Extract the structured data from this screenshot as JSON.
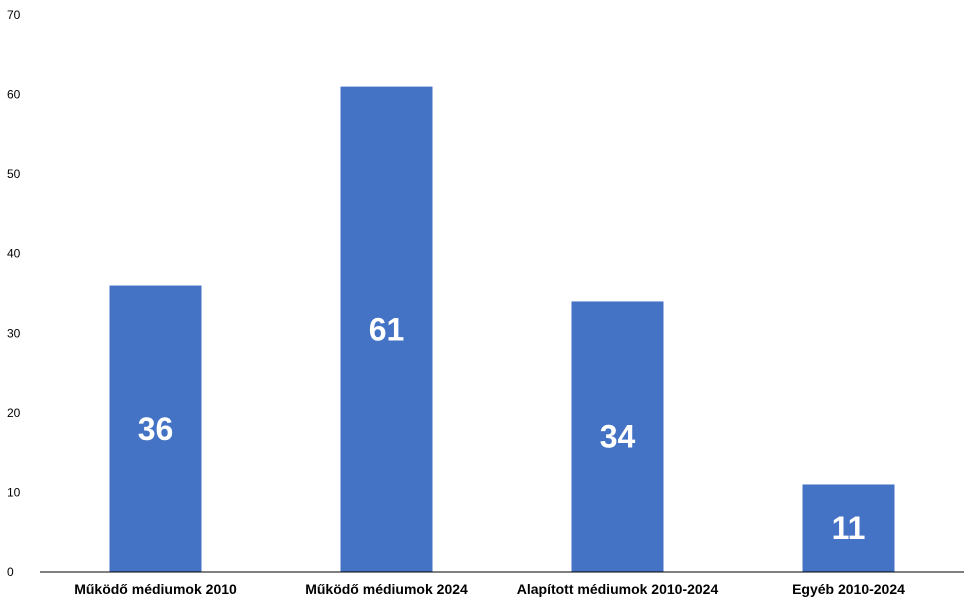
{
  "chart_data": {
    "type": "bar",
    "categories": [
      "Működő médiumok 2010",
      "Működő médiumok 2024",
      "Alapított médiumok 2010-2024",
      "Egyéb 2010-2024"
    ],
    "values": [
      36,
      61,
      34,
      11
    ],
    "data_labels": [
      "36",
      "61",
      "34",
      "11"
    ],
    "yticks": [
      "0",
      "10",
      "20",
      "30",
      "40",
      "50",
      "60",
      "70"
    ],
    "ylim": [
      0,
      70
    ],
    "grid": false,
    "legend": "none",
    "bar_color": "#4472C4",
    "axis_color": "#000000",
    "label_color": "#ffffff"
  }
}
